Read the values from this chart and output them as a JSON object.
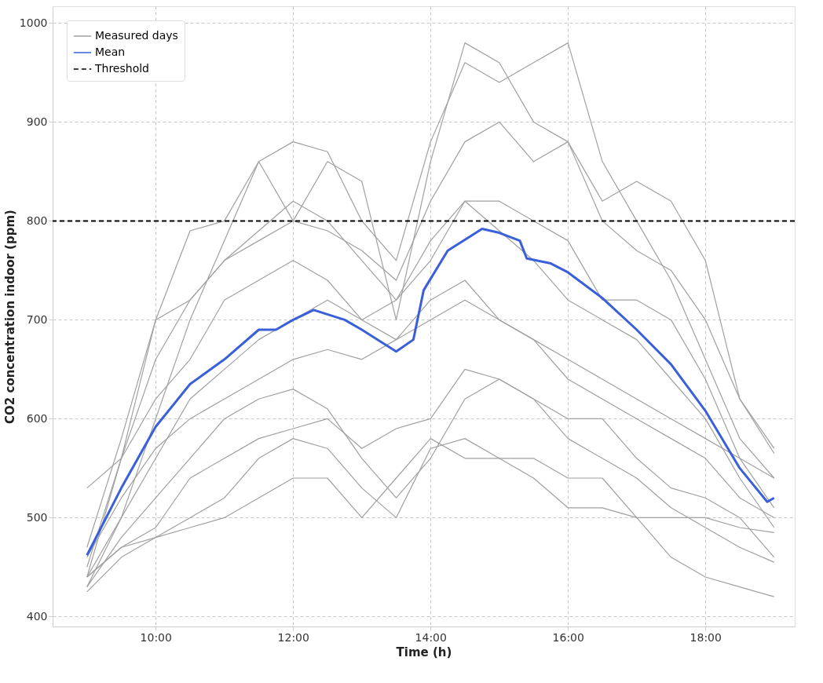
{
  "chart_data": {
    "type": "line",
    "xlabel": "Time (h)",
    "ylabel": "CO2 concentration indoor (ppm)",
    "xlim": [
      8.5,
      19.3
    ],
    "ylim": [
      390,
      1017
    ],
    "xticks": [
      {
        "value": 10,
        "label": "10:00"
      },
      {
        "value": 12,
        "label": "12:00"
      },
      {
        "value": 14,
        "label": "14:00"
      },
      {
        "value": 16,
        "label": "16:00"
      },
      {
        "value": 18,
        "label": "18:00"
      }
    ],
    "yticks": [
      400,
      500,
      600,
      700,
      800,
      900,
      {
        "value": 1000,
        "label": "1000"
      }
    ],
    "x": [
      9,
      9.5,
      10,
      10.5,
      11,
      11.5,
      12,
      12.5,
      13,
      13.5,
      14,
      14.5,
      15,
      15.5,
      16,
      16.5,
      17,
      17.5,
      18,
      18.5,
      19
    ],
    "grid": true,
    "legend": "top left",
    "line_style": "solid",
    "marker": "none",
    "ref_lines": [
      {
        "axis": "y",
        "value": 800,
        "label": "Threshold",
        "color": "#000000",
        "line_style": "dashed"
      }
    ],
    "series": [
      {
        "name": "Measured days",
        "color": "#a0a0a0",
        "values": [
          440,
          560,
          700,
          790,
          800,
          860,
          880,
          870,
          800,
          760,
          880,
          960,
          940,
          960,
          980,
          860,
          800,
          740,
          660,
          580,
          540
        ]
      },
      {
        "color": "#a0a0a0",
        "values": [
          430,
          500,
          600,
          700,
          780,
          860,
          800,
          860,
          840,
          700,
          860,
          980,
          960,
          900,
          880,
          820,
          840,
          820,
          760,
          620,
          570
        ]
      },
      {
        "color": "#a0a0a0",
        "values": [
          450,
          560,
          660,
          720,
          760,
          780,
          800,
          790,
          770,
          740,
          820,
          880,
          900,
          860,
          880,
          800,
          770,
          750,
          700,
          620,
          565
        ]
      },
      {
        "color": "#a0a0a0",
        "values": [
          470,
          580,
          700,
          720,
          760,
          790,
          820,
          800,
          760,
          720,
          760,
          820,
          820,
          800,
          780,
          720,
          720,
          700,
          640,
          560,
          510
        ]
      },
      {
        "color": "#a0a0a0",
        "values": [
          530,
          560,
          620,
          660,
          720,
          740,
          760,
          740,
          700,
          680,
          720,
          740,
          700,
          680,
          640,
          620,
          600,
          580,
          560,
          520,
          500
        ]
      },
      {
        "color": "#a0a0a0",
        "values": [
          440,
          500,
          560,
          620,
          650,
          680,
          700,
          720,
          700,
          720,
          780,
          820,
          790,
          760,
          720,
          700,
          680,
          640,
          600,
          540,
          490
        ]
      },
      {
        "color": "#a0a0a0",
        "values": [
          460,
          520,
          570,
          600,
          620,
          640,
          660,
          670,
          660,
          680,
          700,
          720,
          700,
          680,
          660,
          640,
          620,
          600,
          580,
          560,
          540
        ]
      },
      {
        "color": "#a0a0a0",
        "values": [
          430,
          480,
          520,
          560,
          600,
          620,
          630,
          610,
          560,
          520,
          560,
          620,
          640,
          620,
          600,
          600,
          560,
          530,
          520,
          500,
          460
        ]
      },
      {
        "color": "#a0a0a0",
        "values": [
          440,
          470,
          490,
          540,
          560,
          580,
          590,
          600,
          570,
          590,
          600,
          650,
          640,
          620,
          580,
          560,
          540,
          510,
          490,
          470,
          455
        ]
      },
      {
        "color": "#a0a0a0",
        "values": [
          440,
          470,
          480,
          500,
          520,
          560,
          580,
          570,
          530,
          500,
          570,
          580,
          560,
          560,
          540,
          540,
          500,
          460,
          440,
          430,
          420
        ]
      },
      {
        "color": "#a0a0a0",
        "values": [
          425,
          460,
          480,
          490,
          500,
          520,
          540,
          540,
          500,
          540,
          580,
          560,
          560,
          540,
          510,
          510,
          500,
          500,
          500,
          490,
          485
        ]
      },
      {
        "name": "Mean",
        "color": "#3a5fd9",
        "x": [
          9,
          9.5,
          10,
          10.5,
          11,
          11.5,
          11.75,
          12,
          12.3,
          12.75,
          13,
          13.5,
          13.75,
          13.9,
          14.25,
          14.75,
          15,
          15.3,
          15.4,
          15.75,
          16,
          16.5,
          17,
          17.5,
          18,
          18.5,
          18.9,
          19
        ],
        "values": [
          462,
          530,
          592,
          635,
          660,
          690,
          690,
          700,
          710,
          700,
          690,
          668,
          680,
          730,
          770,
          792,
          788,
          780,
          762,
          757,
          748,
          722,
          690,
          655,
          608,
          550,
          516,
          520
        ]
      }
    ]
  }
}
